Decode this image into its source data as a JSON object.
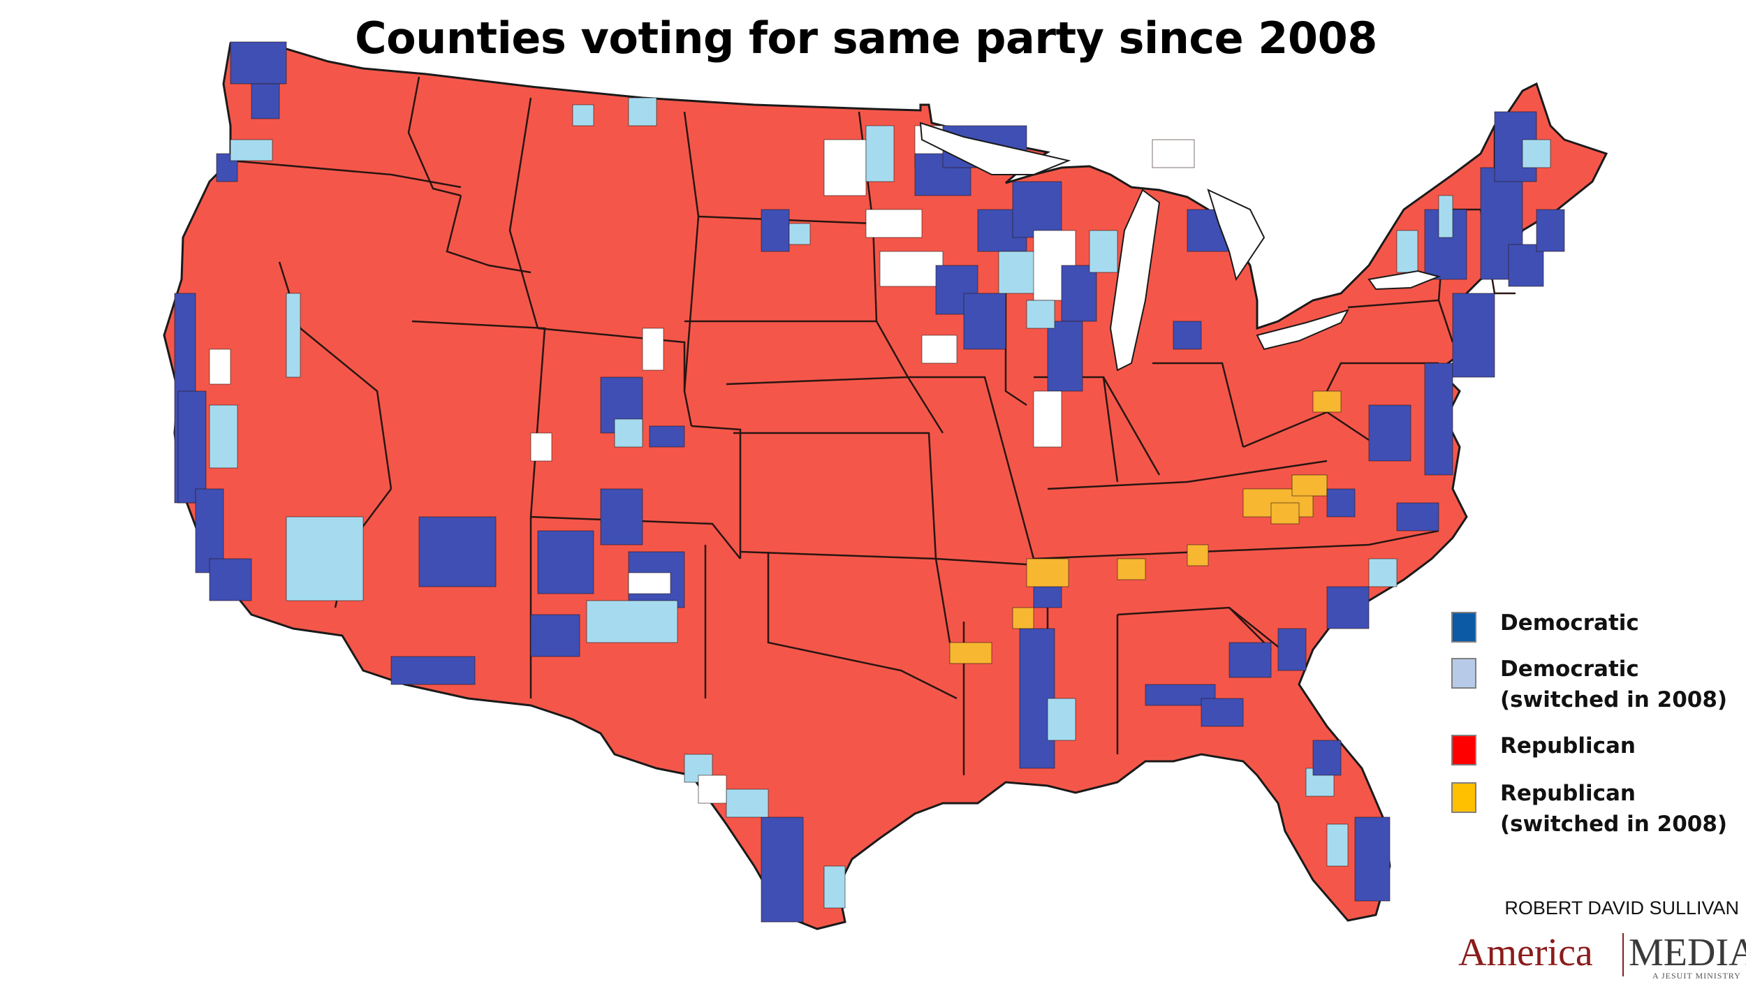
{
  "title": "Counties voting for same party since 2008",
  "colors": {
    "democratic": "#3f4fb4",
    "democratic_switched": "#a6dbef",
    "republican": "#f4574a",
    "republican_switched": "#f7b731",
    "no_pattern": "#ffffff",
    "border": "#2a1512",
    "coast": "#1a1a1a"
  },
  "legend": {
    "items": [
      {
        "label": "Democratic",
        "swatch": "#0c5aa6"
      },
      {
        "label": "Democratic (switched in 2008)",
        "swatch": "#b7cbe8"
      },
      {
        "label": "Republican",
        "swatch": "#ff0000"
      },
      {
        "label": "Republican (switched in 2008)",
        "swatch": "#ffc000"
      }
    ]
  },
  "credit": {
    "author": "ROBERT DAVID SULLIVAN",
    "brand_left": "America",
    "brand_right": "MEDIA",
    "brand_tagline": "A JESUIT MINISTRY"
  }
}
